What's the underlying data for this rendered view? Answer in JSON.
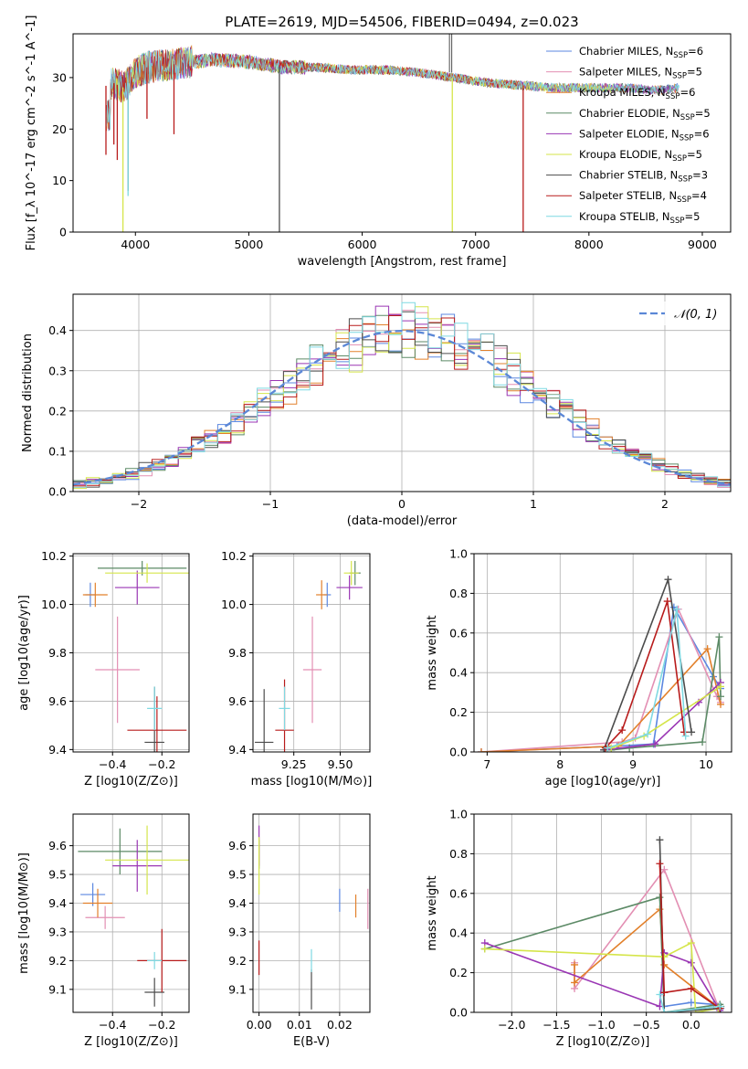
{
  "figure_title": "PLATE=2619, MJD=54506, FIBERID=0494, z=0.023",
  "models": [
    {
      "name": "Chabrier MILES",
      "nssp": "6",
      "color": "#5b87e0"
    },
    {
      "name": "Salpeter MILES",
      "nssp": "5",
      "color": "#e38fb3"
    },
    {
      "name": "Kroupa MILES",
      "nssp": "6",
      "color": "#e2802b"
    },
    {
      "name": "Chabrier ELODIE",
      "nssp": "5",
      "color": "#5c8a66"
    },
    {
      "name": "Salpeter ELODIE",
      "nssp": "6",
      "color": "#9a36b4"
    },
    {
      "name": "Kroupa ELODIE",
      "nssp": "5",
      "color": "#d5e54a"
    },
    {
      "name": "Chabrier STELIB",
      "nssp": "3",
      "color": "#4c4c4c"
    },
    {
      "name": "Salpeter STELIB",
      "nssp": "4",
      "color": "#b81b1b"
    },
    {
      "name": "Kroupa STELIB",
      "nssp": "5",
      "color": "#7fd9e2"
    }
  ],
  "chart_data": [
    {
      "id": "spectrum",
      "type": "line",
      "xlabel": "wavelength [Angstrom, rest frame]",
      "ylabel": "Flux [f_λ 10^-17 erg cm^-2 s^-1 A^-1]",
      "xlim": [
        3450,
        9250
      ],
      "ylim": [
        0,
        38.5
      ],
      "xticks": [
        4000,
        5000,
        6000,
        7000,
        8000,
        9000
      ],
      "yticks": [
        0,
        10,
        20,
        30
      ],
      "legend": "top-right",
      "continuum": [
        [
          3700,
          28
        ],
        [
          3800,
          29
        ],
        [
          3900,
          28
        ],
        [
          4000,
          31
        ],
        [
          4100,
          32
        ],
        [
          4300,
          32.5
        ],
        [
          4500,
          33
        ],
        [
          4700,
          33.5
        ],
        [
          5000,
          33
        ],
        [
          5300,
          32
        ],
        [
          5600,
          32
        ],
        [
          5900,
          31.5
        ],
        [
          6200,
          31.5
        ],
        [
          6500,
          31
        ],
        [
          6800,
          30
        ],
        [
          7100,
          29
        ],
        [
          7400,
          28.5
        ],
        [
          7700,
          28
        ],
        [
          8000,
          28
        ],
        [
          8300,
          28
        ],
        [
          8600,
          27.5
        ],
        [
          8800,
          28
        ]
      ],
      "features": [
        {
          "model": 5,
          "x": 3890,
          "y": 0
        },
        {
          "model": 6,
          "x": 3935,
          "y": 8
        },
        {
          "model": 8,
          "x": 3935,
          "y": 7
        },
        {
          "model": 7,
          "x": 3740,
          "y": 15
        },
        {
          "model": 7,
          "x": 3810,
          "y": 17
        },
        {
          "model": 7,
          "x": 3840,
          "y": 14
        },
        {
          "model": 7,
          "x": 4102,
          "y": 22
        },
        {
          "model": 7,
          "x": 4340,
          "y": 19
        },
        {
          "model": 6,
          "x": 5270,
          "y": 0
        },
        {
          "model": 5,
          "x": 6795,
          "y": 0
        },
        {
          "model": 7,
          "x": 7420,
          "y": 0
        }
      ]
    },
    {
      "id": "residuals",
      "type": "step",
      "xlabel": "(data-model)/error",
      "ylabel": "Normed distribution",
      "xlim": [
        -2.5,
        2.5
      ],
      "ylim": [
        0,
        0.49
      ],
      "xticks": [
        -2,
        -1,
        0,
        1,
        2
      ],
      "yticks": [
        0.0,
        0.1,
        0.2,
        0.3,
        0.4
      ],
      "bin_width": 0.1,
      "reference": {
        "label": "𝒩(0, 1)",
        "color": "#5b87d6"
      },
      "legend": "top-right"
    },
    {
      "id": "age_vs_Z",
      "type": "errorbar",
      "xlabel": "Z [log10(Z/Z⊙)]",
      "ylabel": "age [log10(age/yr)]",
      "xlim": [
        -0.56,
        -0.09
      ],
      "ylim": [
        9.39,
        10.21
      ],
      "xticks": [
        -0.4,
        -0.2
      ],
      "yticks": [
        9.4,
        9.6,
        9.8,
        10.0,
        10.2
      ],
      "points": [
        {
          "model": 0,
          "x": -0.49,
          "y": 10.04,
          "xerr": 0.02,
          "yerr": 0.05
        },
        {
          "model": 1,
          "x": -0.38,
          "y": 9.73,
          "xerr": 0.09,
          "yerr": 0.22
        },
        {
          "model": 2,
          "x": -0.47,
          "y": 10.04,
          "xerr": 0.05,
          "yerr": 0.05
        },
        {
          "model": 3,
          "x": -0.28,
          "y": 10.15,
          "xerr": 0.18,
          "yerr": 0.03
        },
        {
          "model": 4,
          "x": -0.3,
          "y": 10.07,
          "xerr": 0.09,
          "yerr": 0.07
        },
        {
          "model": 5,
          "x": -0.26,
          "y": 10.13,
          "xerr": 0.17,
          "yerr": 0.04
        },
        {
          "model": 6,
          "x": -0.23,
          "y": 9.43,
          "xerr": 0.04,
          "yerr": 0.23
        },
        {
          "model": 7,
          "x": -0.22,
          "y": 9.48,
          "xerr": 0.12,
          "yerr": 0.14
        },
        {
          "model": 8,
          "x": -0.23,
          "y": 9.57,
          "xerr": 0.03,
          "yerr": 0.09
        }
      ]
    },
    {
      "id": "age_vs_mass",
      "type": "errorbar",
      "xlabel": "mass [log10(M/M⊙)]",
      "ylabel": "",
      "xlim": [
        9.03,
        9.66
      ],
      "ylim": [
        9.39,
        10.21
      ],
      "xticks": [
        9.25,
        9.5
      ],
      "yticks": [
        9.4,
        9.6,
        9.8,
        10.0,
        10.2
      ],
      "points": [
        {
          "model": 0,
          "x": 9.43,
          "y": 10.04,
          "xerr": 0.02,
          "yerr": 0.05
        },
        {
          "model": 1,
          "x": 9.35,
          "y": 9.73,
          "xerr": 0.05,
          "yerr": 0.22
        },
        {
          "model": 2,
          "x": 9.4,
          "y": 10.04,
          "xerr": 0.03,
          "yerr": 0.06
        },
        {
          "model": 3,
          "x": 9.58,
          "y": 10.13,
          "xerr": 0.03,
          "yerr": 0.05
        },
        {
          "model": 4,
          "x": 9.55,
          "y": 10.07,
          "xerr": 0.07,
          "yerr": 0.05
        },
        {
          "model": 5,
          "x": 9.56,
          "y": 10.13,
          "xerr": 0.04,
          "yerr": 0.05
        },
        {
          "model": 6,
          "x": 9.09,
          "y": 9.43,
          "xerr": 0.05,
          "yerr": 0.22
        },
        {
          "model": 7,
          "x": 9.2,
          "y": 9.48,
          "xerr": 0.05,
          "yerr": 0.21
        },
        {
          "model": 8,
          "x": 9.2,
          "y": 9.57,
          "xerr": 0.03,
          "yerr": 0.09
        }
      ]
    },
    {
      "id": "weight_vs_age",
      "type": "line",
      "xlabel": "age [log10(age/yr)]",
      "ylabel": "mass weight",
      "xlim": [
        6.82,
        10.35
      ],
      "ylim": [
        0,
        1.0
      ],
      "xticks": [
        7,
        8,
        9,
        10
      ],
      "yticks": [
        0.0,
        0.2,
        0.4,
        0.6,
        0.8,
        1.0
      ],
      "series": [
        {
          "model": 0,
          "x": [
            6.92,
            8.78,
            9.28,
            9.56,
            10.1,
            10.2
          ],
          "y": [
            0.0,
            0.03,
            0.04,
            0.73,
            0.38,
            0.32
          ]
        },
        {
          "model": 1,
          "x": [
            6.92,
            8.85,
            9.03,
            9.62,
            10.15,
            10.2
          ],
          "y": [
            0.0,
            0.05,
            0.07,
            0.72,
            0.28,
            0.25
          ]
        },
        {
          "model": 2,
          "x": [
            6.92,
            8.8,
            10.02,
            10.2
          ],
          "y": [
            0.0,
            0.03,
            0.52,
            0.24
          ]
        },
        {
          "model": 3,
          "x": [
            8.7,
            8.95,
            9.95,
            10.18,
            10.2
          ],
          "y": [
            0.01,
            0.02,
            0.05,
            0.58,
            0.28
          ]
        },
        {
          "model": 4,
          "x": [
            8.6,
            9.3,
            9.9,
            10.2
          ],
          "y": [
            0.01,
            0.04,
            0.25,
            0.35
          ]
        },
        {
          "model": 5,
          "x": [
            8.7,
            9.15,
            10.2
          ],
          "y": [
            0.02,
            0.08,
            0.33
          ]
        },
        {
          "model": 6,
          "x": [
            8.6,
            9.48,
            9.8
          ],
          "y": [
            0.01,
            0.87,
            0.1
          ]
        },
        {
          "model": 7,
          "x": [
            8.62,
            8.85,
            9.47,
            9.7
          ],
          "y": [
            0.02,
            0.11,
            0.76,
            0.1
          ]
        },
        {
          "model": 8,
          "x": [
            8.65,
            9.2,
            9.6,
            9.72
          ],
          "y": [
            0.02,
            0.09,
            0.72,
            0.08
          ]
        }
      ]
    },
    {
      "id": "mass_vs_Z",
      "type": "errorbar",
      "xlabel": "Z [log10(Z/Z⊙)]",
      "ylabel": "mass [log10(M/M⊙)]",
      "xlim": [
        -0.56,
        -0.09
      ],
      "ylim": [
        9.02,
        9.71
      ],
      "xticks": [
        -0.4,
        -0.2
      ],
      "yticks": [
        9.1,
        9.2,
        9.3,
        9.4,
        9.5,
        9.6
      ],
      "points": [
        {
          "model": 0,
          "x": -0.48,
          "y": 9.43,
          "xerr": 0.05,
          "yerr": 0.04
        },
        {
          "model": 1,
          "x": -0.43,
          "y": 9.35,
          "xerr": 0.08,
          "yerr": 0.04
        },
        {
          "model": 2,
          "x": -0.46,
          "y": 9.4,
          "xerr": 0.06,
          "yerr": 0.05
        },
        {
          "model": 3,
          "x": -0.37,
          "y": 9.58,
          "xerr": 0.17,
          "yerr": 0.08
        },
        {
          "model": 4,
          "x": -0.3,
          "y": 9.53,
          "xerr": 0.1,
          "yerr": 0.09
        },
        {
          "model": 5,
          "x": -0.26,
          "y": 9.55,
          "xerr": 0.17,
          "yerr": 0.12
        },
        {
          "model": 6,
          "x": -0.23,
          "y": 9.09,
          "xerr": 0.04,
          "yerr": 0.05
        },
        {
          "model": 7,
          "x": -0.2,
          "y": 9.2,
          "xerr": 0.1,
          "yerr": 0.11
        },
        {
          "model": 8,
          "x": -0.23,
          "y": 9.2,
          "xerr": 0.03,
          "yerr": 0.03
        }
      ]
    },
    {
      "id": "mass_vs_ebv",
      "type": "errorbar",
      "xlabel": "E(B-V)",
      "ylabel": "",
      "xlim": [
        -0.0015,
        0.0275
      ],
      "ylim": [
        9.02,
        9.71
      ],
      "xticks": [
        0.0,
        0.01,
        0.02
      ],
      "yticks": [
        9.1,
        9.2,
        9.3,
        9.4,
        9.5,
        9.6
      ],
      "points": [
        {
          "model": 0,
          "x": 0.02,
          "y": 9.41,
          "xerr": 0,
          "yerr": 0.04
        },
        {
          "model": 1,
          "x": 0.027,
          "y": 9.38,
          "xerr": 0,
          "yerr": 0.07
        },
        {
          "model": 2,
          "x": 0.024,
          "y": 9.39,
          "xerr": 0,
          "yerr": 0.04
        },
        {
          "model": 3,
          "x": 0.0,
          "y": 9.57,
          "xerr": 0,
          "yerr": 0.05
        },
        {
          "model": 4,
          "x": 0.0,
          "y": 9.6,
          "xerr": 0,
          "yerr": 0.07
        },
        {
          "model": 5,
          "x": 0.0,
          "y": 9.53,
          "xerr": 0,
          "yerr": 0.1
        },
        {
          "model": 6,
          "x": 0.013,
          "y": 9.1,
          "xerr": 0,
          "yerr": 0.07
        },
        {
          "model": 7,
          "x": 0.0,
          "y": 9.21,
          "xerr": 0,
          "yerr": 0.06
        },
        {
          "model": 8,
          "x": 0.013,
          "y": 9.2,
          "xerr": 0,
          "yerr": 0.04
        }
      ]
    },
    {
      "id": "weight_vs_Z",
      "type": "line",
      "xlabel": "Z [log10(Z/Z⊙)]",
      "ylabel": "mass weight",
      "xlim": [
        -2.42,
        0.45
      ],
      "ylim": [
        0,
        1.0
      ],
      "xticks": [
        -2.0,
        -1.5,
        -1.0,
        -0.5,
        0.0
      ],
      "yticks": [
        0.0,
        0.2,
        0.4,
        0.6,
        0.8,
        1.0
      ],
      "series": [
        {
          "model": 0,
          "x": [
            -0.3,
            0.0,
            0.25,
            0.3,
            0.33
          ],
          "y": [
            0.03,
            0.05,
            0.04,
            0.03,
            0.02
          ]
        },
        {
          "model": 1,
          "x": [
            -1.3,
            -1.3,
            -0.3,
            0.3
          ],
          "y": [
            0.25,
            0.12,
            0.72,
            0.03
          ]
        },
        {
          "model": 2,
          "x": [
            -1.3,
            -1.3,
            -0.35,
            -0.3,
            0.32
          ],
          "y": [
            0.24,
            0.15,
            0.52,
            0.24,
            0.02
          ]
        },
        {
          "model": 3,
          "x": [
            -2.3,
            -0.35,
            -0.3,
            0.32,
            0.33
          ],
          "y": [
            0.32,
            0.58,
            0.0,
            0.04,
            0.03
          ]
        },
        {
          "model": 4,
          "x": [
            -2.3,
            -0.35,
            -0.3,
            0.0,
            0.32
          ],
          "y": [
            0.35,
            0.03,
            0.3,
            0.25,
            0.01
          ]
        },
        {
          "model": 5,
          "x": [
            -2.3,
            -0.3,
            0.0,
            0.05,
            0.3
          ],
          "y": [
            0.32,
            0.28,
            0.35,
            0.0,
            0.02
          ]
        },
        {
          "model": 6,
          "x": [
            -0.35,
            -0.3,
            0.32
          ],
          "y": [
            0.87,
            0.0,
            0.02
          ]
        },
        {
          "model": 7,
          "x": [
            -0.35,
            -0.3,
            0.0,
            0.32
          ],
          "y": [
            0.75,
            0.1,
            0.12,
            0.02
          ]
        },
        {
          "model": 8,
          "x": [
            -0.35,
            -0.3,
            0.32
          ],
          "y": [
            0.09,
            0.0,
            0.03
          ]
        }
      ]
    }
  ]
}
